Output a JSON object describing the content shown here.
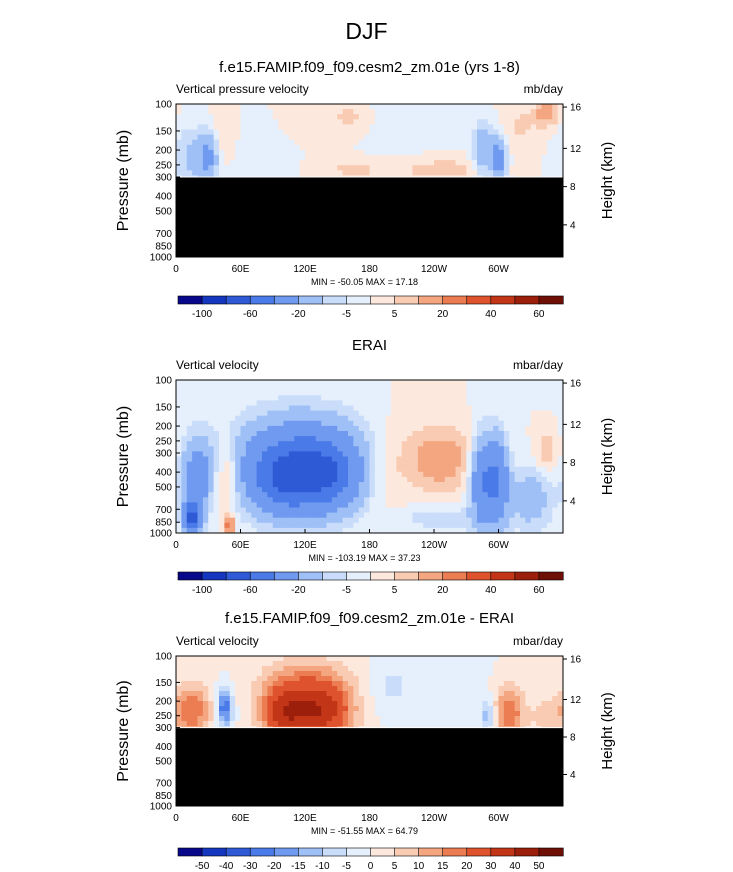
{
  "figure_title": "DJF",
  "chart_data": [
    {
      "type": "heatmap",
      "title": "f.e15.FAMIP.f09_f09.cesm2_zm.01e (yrs 1-8)",
      "left_label": "Vertical pressure velocity",
      "right_label": "mb/day",
      "ylabel": "Pressure (mb)",
      "ylabel_right": "Height (km)",
      "xlabel": "",
      "x_ticks": [
        "0",
        "60E",
        "120E",
        "180",
        "120W",
        "60W"
      ],
      "y_ticks": [
        "100",
        "150",
        "200",
        "250",
        "300",
        "400",
        "500",
        "700",
        "850",
        "1000"
      ],
      "y_right_ticks": [
        "16",
        "12",
        "8",
        "4"
      ],
      "missing_below_mb": 300,
      "stats": "MIN = -50.05  MAX =  17.18",
      "colorbar_labels": [
        "-100",
        "-60",
        "-20",
        "-5",
        "5",
        "20",
        "40",
        "60"
      ],
      "colorbar_colors": [
        "#08088a",
        "#1537c0",
        "#2e5ad6",
        "#4a7ae8",
        "#6f9af0",
        "#9ec0f7",
        "#c9ddfa",
        "#e6f0fc",
        "#fce8dc",
        "#f9cbb2",
        "#f4a681",
        "#ec7c52",
        "#de532d",
        "#c23516",
        "#9c1f0c",
        "#6e1006"
      ],
      "features": [
        {
          "lon": 15,
          "p": 220,
          "v": -12,
          "w": 12,
          "h": 0.9
        },
        {
          "lon": 30,
          "p": 220,
          "v": -22,
          "w": 6,
          "h": 0.7
        },
        {
          "lon": 45,
          "p": 160,
          "v": 6,
          "w": 10,
          "h": 0.8
        },
        {
          "lon": 80,
          "p": 180,
          "v": -4,
          "w": 25,
          "h": 1.0
        },
        {
          "lon": 120,
          "p": 130,
          "v": 4,
          "w": 25,
          "h": 0.8
        },
        {
          "lon": 165,
          "p": 120,
          "v": 6,
          "w": 15,
          "h": 0.5
        },
        {
          "lon": 165,
          "p": 270,
          "v": 6,
          "w": 25,
          "h": 0.3
        },
        {
          "lon": 210,
          "p": 120,
          "v": -4,
          "w": 30,
          "h": 0.9
        },
        {
          "lon": 250,
          "p": 270,
          "v": 8,
          "w": 30,
          "h": 0.35
        },
        {
          "lon": 285,
          "p": 200,
          "v": -18,
          "w": 6,
          "h": 0.9
        },
        {
          "lon": 300,
          "p": 230,
          "v": -28,
          "w": 5,
          "h": 0.7
        },
        {
          "lon": 320,
          "p": 140,
          "v": 6,
          "w": 12,
          "h": 0.7
        },
        {
          "lon": 345,
          "p": 115,
          "v": 14,
          "w": 8,
          "h": 0.4
        }
      ]
    },
    {
      "type": "heatmap",
      "title": "ERAI",
      "left_label": "Vertical velocity",
      "right_label": "mbar/day",
      "ylabel": "Pressure (mb)",
      "ylabel_right": "Height (km)",
      "xlabel": "",
      "x_ticks": [
        "0",
        "60E",
        "120E",
        "180",
        "120W",
        "60W"
      ],
      "y_ticks": [
        "100",
        "150",
        "200",
        "250",
        "300",
        "400",
        "500",
        "700",
        "850",
        "1000"
      ],
      "y_right_ticks": [
        "16",
        "12",
        "8",
        "4"
      ],
      "missing_below_mb": null,
      "stats": "MIN = -103.19  MAX =  37.23",
      "colorbar_labels": [
        "-100",
        "-60",
        "-20",
        "-5",
        "5",
        "20",
        "40",
        "60"
      ],
      "colorbar_colors": [
        "#08088a",
        "#1537c0",
        "#2e5ad6",
        "#4a7ae8",
        "#6f9af0",
        "#9ec0f7",
        "#c9ddfa",
        "#e6f0fc",
        "#fce8dc",
        "#f9cbb2",
        "#f4a681",
        "#ec7c52",
        "#de532d",
        "#c23516",
        "#9c1f0c",
        "#6e1006"
      ],
      "features": [
        {
          "lon": 20,
          "p": 450,
          "v": -30,
          "w": 10,
          "h": 1.2
        },
        {
          "lon": 15,
          "p": 800,
          "v": -60,
          "w": 5,
          "h": 0.5
        },
        {
          "lon": 35,
          "p": 550,
          "v": 6,
          "w": 6,
          "h": 1.0
        },
        {
          "lon": 48,
          "p": 420,
          "v": 14,
          "w": 7,
          "h": 1.0
        },
        {
          "lon": 50,
          "p": 900,
          "v": 30,
          "w": 3,
          "h": 0.3
        },
        {
          "lon": 115,
          "p": 350,
          "v": -40,
          "w": 42,
          "h": 1.4
        },
        {
          "lon": 100,
          "p": 450,
          "v": -35,
          "w": 20,
          "h": 1.0
        },
        {
          "lon": 140,
          "p": 420,
          "v": -35,
          "w": 20,
          "h": 1.0
        },
        {
          "lon": 195,
          "p": 400,
          "v": 6,
          "w": 15,
          "h": 1.5
        },
        {
          "lon": 245,
          "p": 330,
          "v": 15,
          "w": 25,
          "h": 1.0
        },
        {
          "lon": 245,
          "p": 800,
          "v": -8,
          "w": 30,
          "h": 0.4
        },
        {
          "lon": 285,
          "p": 450,
          "v": -40,
          "w": 8,
          "h": 1.3
        },
        {
          "lon": 300,
          "p": 450,
          "v": -35,
          "w": 7,
          "h": 1.3
        },
        {
          "lon": 330,
          "p": 600,
          "v": -15,
          "w": 15,
          "h": 1.0
        },
        {
          "lon": 345,
          "p": 300,
          "v": 10,
          "w": 8,
          "h": 0.6
        }
      ]
    },
    {
      "type": "heatmap",
      "title": "f.e15.FAMIP.f09_f09.cesm2_zm.01e - ERAI",
      "left_label": "Vertical velocity",
      "right_label": "mbar/day",
      "ylabel": "Pressure (mb)",
      "ylabel_right": "Height (km)",
      "xlabel": "",
      "x_ticks": [
        "0",
        "60E",
        "120E",
        "180",
        "120W",
        "60W"
      ],
      "y_ticks": [
        "100",
        "150",
        "200",
        "250",
        "300",
        "400",
        "500",
        "700",
        "850",
        "1000"
      ],
      "y_right_ticks": [
        "16",
        "12",
        "8",
        "4"
      ],
      "missing_below_mb": 300,
      "stats": "MIN = -51.55  MAX =  64.79",
      "colorbar_labels": [
        "-50",
        "-40",
        "-30",
        "-20",
        "-15",
        "-10",
        "-5",
        "0",
        "5",
        "10",
        "15",
        "20",
        "30",
        "40",
        "50"
      ],
      "colorbar_colors": [
        "#08088a",
        "#1537c0",
        "#2e5ad6",
        "#4a7ae8",
        "#6f9af0",
        "#9ec0f7",
        "#c9ddfa",
        "#e6f0fc",
        "#fce8dc",
        "#f9cbb2",
        "#f4a681",
        "#ec7c52",
        "#de532d",
        "#c23516",
        "#9c1f0c",
        "#6e1006"
      ],
      "features": [
        {
          "lon": 15,
          "p": 230,
          "v": 20,
          "w": 12,
          "h": 0.8
        },
        {
          "lon": 45,
          "p": 220,
          "v": -25,
          "w": 5,
          "h": 0.6
        },
        {
          "lon": 100,
          "p": 240,
          "v": 30,
          "w": 15,
          "h": 0.8
        },
        {
          "lon": 135,
          "p": 240,
          "v": 35,
          "w": 20,
          "h": 0.9
        },
        {
          "lon": 120,
          "p": 150,
          "v": 12,
          "w": 30,
          "h": 0.8
        },
        {
          "lon": 200,
          "p": 160,
          "v": -6,
          "w": 15,
          "h": 0.8
        },
        {
          "lon": 250,
          "p": 150,
          "v": -5,
          "w": 20,
          "h": 1.0
        },
        {
          "lon": 290,
          "p": 250,
          "v": -15,
          "w": 5,
          "h": 0.5
        },
        {
          "lon": 310,
          "p": 240,
          "v": 20,
          "w": 10,
          "h": 0.8
        },
        {
          "lon": 345,
          "p": 250,
          "v": 8,
          "w": 10,
          "h": 0.6
        }
      ]
    }
  ]
}
